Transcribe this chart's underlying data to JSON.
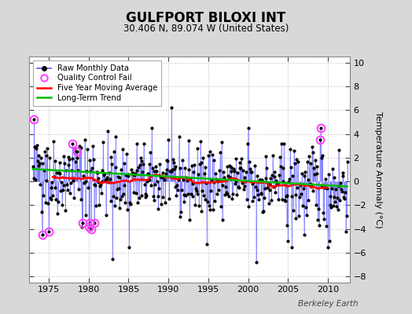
{
  "title": "GULFPORT BILOXI INT",
  "subtitle": "30.406 N, 89.074 W (United States)",
  "ylabel": "Temperature Anomaly (°C)",
  "credit": "Berkeley Earth",
  "ylim": [
    -8.5,
    10.5
  ],
  "xlim": [
    1972.5,
    2012.8
  ],
  "yticks": [
    -8,
    -6,
    -4,
    -2,
    0,
    2,
    4,
    6,
    8,
    10
  ],
  "xticks": [
    1975,
    1980,
    1985,
    1990,
    1995,
    2000,
    2005,
    2010
  ],
  "bg_color": "#d8d8d8",
  "plot_bg_color": "#ffffff",
  "raw_line_color": "#5555ff",
  "raw_dot_color": "#000000",
  "qc_fail_color": "#ff44ff",
  "moving_avg_color": "#ff0000",
  "trend_color": "#00bb00",
  "seed": 42
}
